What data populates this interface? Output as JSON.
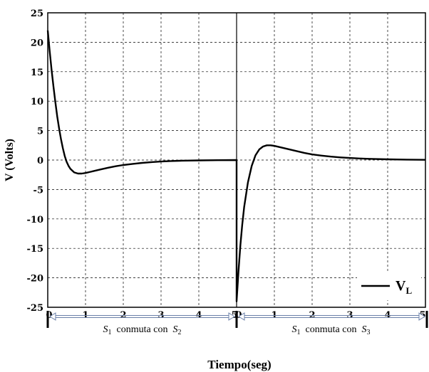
{
  "chart_data": {
    "type": "line",
    "title": "",
    "xlabel": "Tiempo(seg)",
    "ylabel": "V (Volts)",
    "ylim": [
      -25,
      25
    ],
    "yticks": [
      "25",
      "20",
      "15",
      "10",
      "5",
      "0",
      "-5",
      "-10",
      "-15",
      "-20",
      "-25"
    ],
    "xticks": [
      "0",
      "1",
      "2",
      "3",
      "4",
      "5",
      "0",
      "1",
      "2",
      "3",
      "4",
      "5"
    ],
    "grid": true,
    "legend": {
      "placement": "bottom-right",
      "entries": [
        {
          "main": "V",
          "sub": "L"
        }
      ]
    },
    "series": [
      {
        "name": "V_L",
        "color": "#000000",
        "segments": [
          {
            "x": [
              0,
              0.05,
              0.1,
              0.15,
              0.2,
              0.25,
              0.3,
              0.35,
              0.4,
              0.45,
              0.5,
              0.55,
              0.6,
              0.7,
              0.8,
              0.9,
              1.0,
              1.2,
              1.4,
              1.6,
              1.8,
              2.0,
              2.25,
              2.5,
              2.75,
              3.0,
              3.25,
              3.5,
              4.0,
              4.5,
              5.0
            ],
            "y": [
              22.0,
              18.5,
              15.4,
              12.5,
              9.9,
              7.4,
              5.4,
              3.6,
              2.0,
              0.7,
              -0.3,
              -1.0,
              -1.5,
              -2.1,
              -2.3,
              -2.3,
              -2.2,
              -1.9,
              -1.6,
              -1.3,
              -1.05,
              -0.85,
              -0.65,
              -0.48,
              -0.35,
              -0.25,
              -0.17,
              -0.12,
              -0.06,
              -0.02,
              0.0
            ]
          },
          {
            "x": [
              5.0,
              5.0,
              5.05,
              5.1,
              5.15,
              5.2,
              5.3,
              5.4,
              5.5,
              5.6,
              5.7,
              5.8,
              5.9,
              6.0,
              6.2,
              6.4,
              6.6,
              6.8,
              7.0,
              7.25,
              7.5,
              7.75,
              8.0,
              8.25,
              8.5,
              9.0,
              9.5,
              10.0
            ],
            "y": [
              0.0,
              -24.0,
              -19.0,
              -14.5,
              -11.0,
              -8.0,
              -3.8,
              -1.0,
              0.8,
              1.8,
              2.3,
              2.5,
              2.5,
              2.4,
              2.1,
              1.8,
              1.5,
              1.2,
              0.95,
              0.75,
              0.58,
              0.45,
              0.35,
              0.27,
              0.2,
              0.12,
              0.07,
              0.04
            ]
          }
        ]
      }
    ],
    "intervals": [
      {
        "a_main": "S",
        "a_sub": "1",
        "text": "conmuta con",
        "b_main": "S",
        "b_sub": "2"
      },
      {
        "a_main": "S",
        "a_sub": "1",
        "text": "conmuta con",
        "b_main": "S",
        "b_sub": "3"
      }
    ]
  }
}
